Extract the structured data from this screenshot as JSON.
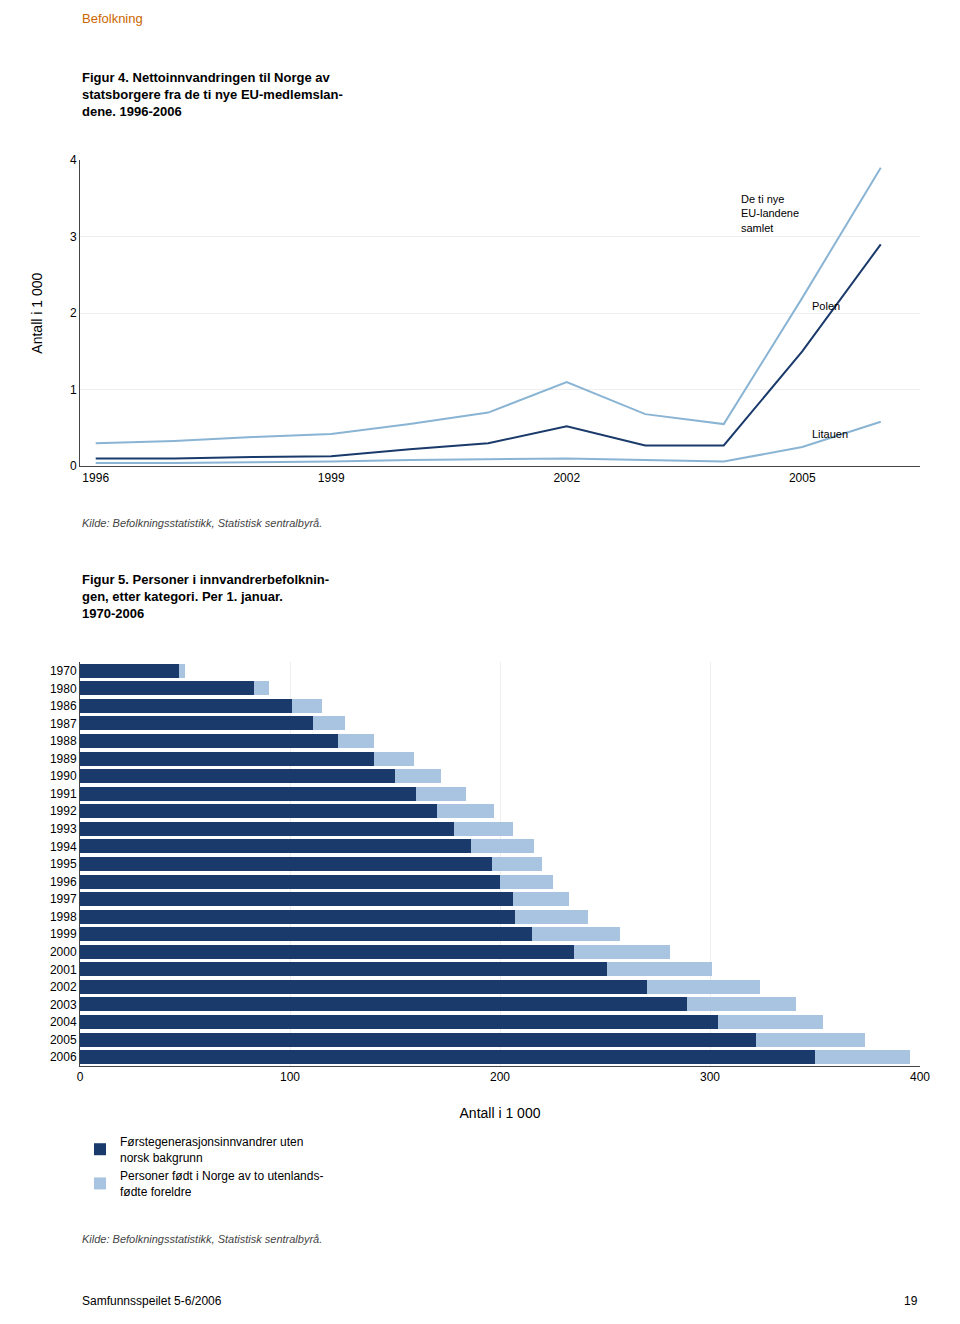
{
  "chart_data": [
    {
      "type": "line",
      "title": "Figur 4. Nettoinnvandringen til Norge av\nstatsborgere fra de ti nye EU-medlemslan-\ndene. 1996-2006",
      "ylabel": "Antall i 1 000",
      "x": [
        1996,
        1997,
        1998,
        1999,
        2000,
        2001,
        2002,
        2003,
        2004,
        2005,
        2006
      ],
      "series": [
        {
          "color": "#8ab4d4",
          "values": [
            0.3,
            0.33,
            0.38,
            0.42,
            0.55,
            0.7,
            1.1,
            0.68,
            0.55,
            2.2,
            3.9
          ]
        },
        {
          "color": "#1a3a6b",
          "values": [
            0.1,
            0.1,
            0.12,
            0.13,
            0.22,
            0.3,
            0.52,
            0.27,
            0.27,
            1.5,
            2.9
          ]
        },
        {
          "color": "#8ab4d4",
          "values": [
            0.04,
            0.04,
            0.05,
            0.06,
            0.08,
            0.09,
            0.1,
            0.08,
            0.06,
            0.25,
            0.58
          ]
        }
      ],
      "xlim": [
        1995.8,
        2006.5
      ],
      "xticks": [
        1996,
        1999,
        2002,
        2005
      ],
      "ylim": [
        0,
        4
      ],
      "yticks": [
        0,
        1,
        2,
        3,
        4
      ],
      "grid": true,
      "annotations": [
        {
          "text": "De ti nye\nEU-landene\nsamlet",
          "x": 2004.2,
          "y": 3.3
        },
        {
          "text": "Polen",
          "x": 2005.1,
          "y": 2.1
        },
        {
          "text": "Litauen",
          "x": 2005.1,
          "y": 0.42
        }
      ],
      "source": "Kilde: Befolkningsstatistikk, Statistisk sentralbyrå."
    },
    {
      "type": "bar",
      "orientation": "horizontal",
      "stacked": true,
      "title": "Figur 5. Personer i innvandrerbefolknin-\ngen, etter kategori. Per 1. januar.\n1970-2006",
      "xlabel": "Antall i 1 000",
      "categories": [
        "1970",
        "1980",
        "1986",
        "1987",
        "1988",
        "1989",
        "1990",
        "1991",
        "1992",
        "1993",
        "1994",
        "1995",
        "1996",
        "1997",
        "1998",
        "1999",
        "2000",
        "2001",
        "2002",
        "2003",
        "2004",
        "2005",
        "2006"
      ],
      "series": [
        {
          "name": "Førstegenerasjonsinnvandrer uten\nnorsk bakgrunn",
          "color": "#1a3a6b",
          "values": [
            47,
            83,
            101,
            111,
            123,
            140,
            150,
            160,
            170,
            178,
            186,
            196,
            200,
            206,
            207,
            215,
            235,
            251,
            270,
            289,
            304,
            322,
            350
          ]
        },
        {
          "name": "Personer født i Norge av to utenlands-\nfødte foreldre",
          "color": "#a8c4e0",
          "values": [
            3,
            7,
            14,
            15,
            17,
            19,
            22,
            24,
            27,
            28,
            30,
            24,
            25,
            27,
            35,
            42,
            46,
            50,
            54,
            52,
            50,
            52,
            45
          ]
        }
      ],
      "xlim": [
        0,
        400
      ],
      "xticks": [
        0,
        100,
        200,
        300,
        400
      ],
      "grid": true,
      "legend": "bottom",
      "source": "Kilde: Befolkningsstatistikk, Statistisk sentralbyrå."
    }
  ],
  "page_title": "Befolkning",
  "footer_left": "Samfunnsspeilet 5-6/2006",
  "footer_right": "19"
}
